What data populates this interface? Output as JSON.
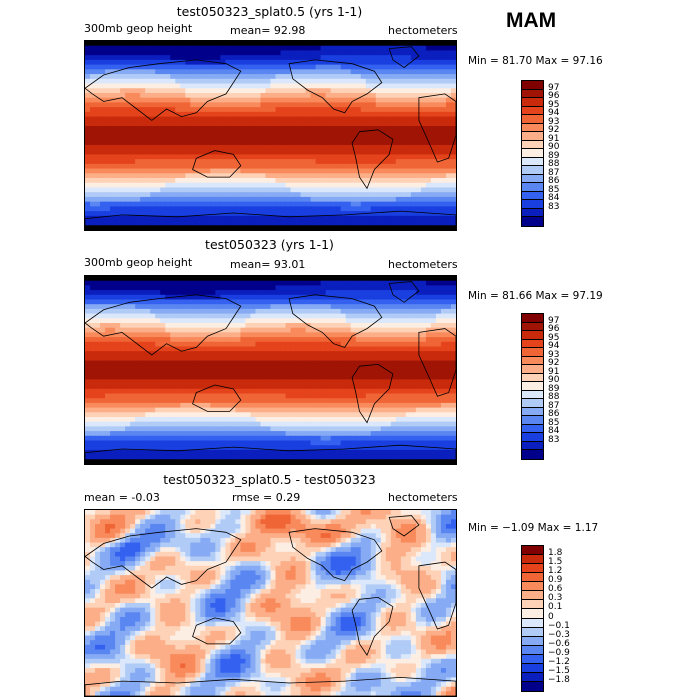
{
  "season": "MAM",
  "palette": {
    "abs": [
      "#00008b",
      "#0b1fbe",
      "#1a3fe0",
      "#3461ef",
      "#5a86f2",
      "#86aaf4",
      "#b1cbf7",
      "#dbe7fa",
      "#fdeee3",
      "#fdd2b7",
      "#fcae88",
      "#f88a5c",
      "#f06536",
      "#e4431b",
      "#c92a0c",
      "#a01405",
      "#800000"
    ],
    "diff": [
      "#00008b",
      "#0b1fbe",
      "#1a3fe0",
      "#3461ef",
      "#5a86f2",
      "#86aaf4",
      "#b1cbf7",
      "#dbe7fa",
      "#fdeee3",
      "#fdd2b7",
      "#fcae88",
      "#f88a5c",
      "#f06536",
      "#e4431b",
      "#c92a0c",
      "#800000"
    ]
  },
  "panels": [
    {
      "title": "test050323_splat0.5 (yrs 1-1)",
      "left_label": "300mb geop height",
      "center_label": "mean=  92.98",
      "right_label": "hectometers",
      "minmax": "Min =  81.70 Max =  97.16",
      "levels": [
        "97",
        "96",
        "95",
        "94",
        "93",
        "92",
        "91",
        "90",
        "89",
        "88",
        "87",
        "86",
        "85",
        "84",
        "83"
      ],
      "mode": "abs"
    },
    {
      "title": "test050323 (yrs 1-1)",
      "left_label": "300mb geop height",
      "center_label": "mean=  93.01",
      "right_label": "hectometers",
      "minmax": "Min =  81.66 Max =  97.19",
      "levels": [
        "97",
        "96",
        "95",
        "94",
        "93",
        "92",
        "91",
        "90",
        "89",
        "88",
        "87",
        "86",
        "85",
        "84",
        "83"
      ],
      "mode": "abs"
    },
    {
      "title": "test050323_splat0.5 - test050323",
      "left_label": "mean =  -0.03",
      "center_label": "rmse =    0.29",
      "right_label": "hectometers",
      "minmax": "Min = −1.09 Max =   1.17",
      "levels": [
        "1.8",
        "1.5",
        "1.2",
        "0.9",
        "0.6",
        "0.3",
        "0.1",
        "0",
        "−0.1",
        "−0.3",
        "−0.6",
        "−0.9",
        "−1.2",
        "−1.5",
        "−1.8"
      ],
      "mode": "diff"
    }
  ]
}
